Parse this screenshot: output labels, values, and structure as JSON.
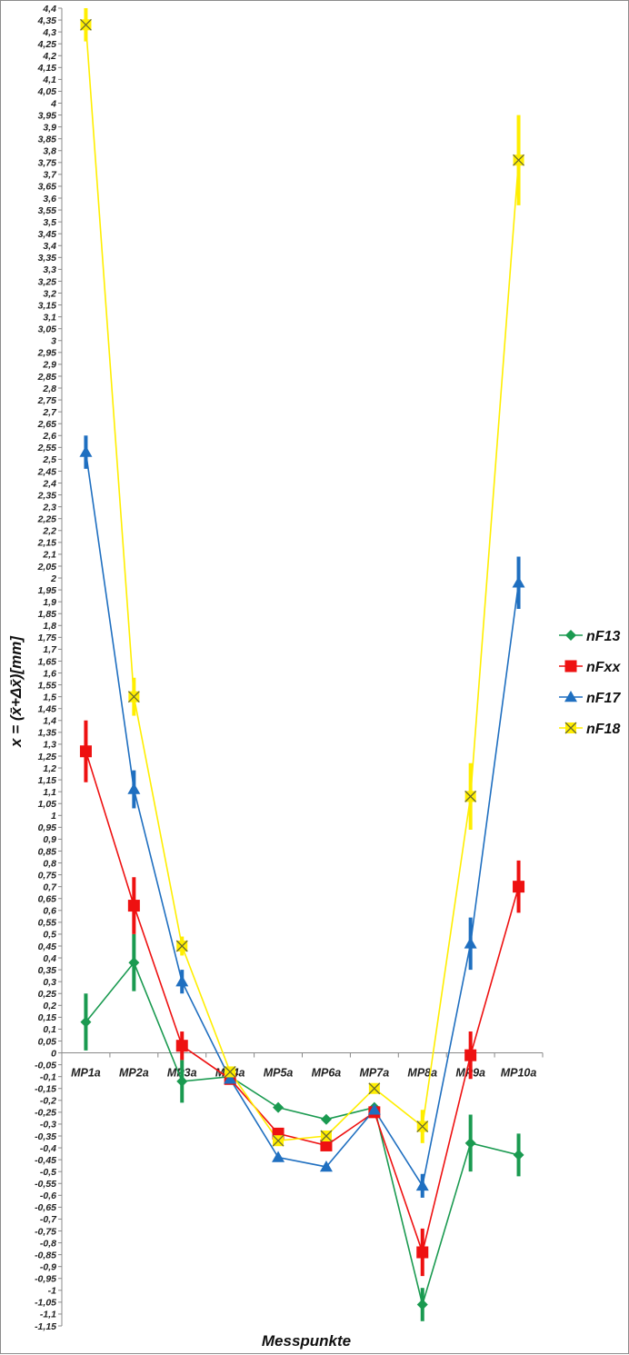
{
  "chart_data": {
    "type": "line",
    "xlabel": "Messpunkte",
    "ylabel": "x = (x̄+Δx̄)[mm]",
    "ylim": [
      -1.15,
      4.4
    ],
    "ytick_step": 0.05,
    "grid": false,
    "legend_position": "right",
    "categories": [
      "MP1a",
      "MP2a",
      "MP3a",
      "MP4a",
      "MP5a",
      "MP6a",
      "MP7a",
      "MP8a",
      "MP9a",
      "MP10a"
    ],
    "series": [
      {
        "name": "nF13",
        "color": "#1a9a50",
        "marker": "diamond",
        "values": [
          0.13,
          0.38,
          -0.12,
          -0.1,
          -0.23,
          -0.28,
          -0.23,
          -1.06,
          -0.38,
          -0.43
        ],
        "errors": [
          0.12,
          0.12,
          0.09,
          0.0,
          0.0,
          0.0,
          0.0,
          0.07,
          0.12,
          0.09
        ]
      },
      {
        "name": "nFxx",
        "color": "#ee1111",
        "marker": "square",
        "values": [
          1.27,
          0.62,
          0.03,
          -0.11,
          -0.34,
          -0.39,
          -0.25,
          -0.84,
          -0.01,
          0.7
        ],
        "errors": [
          0.13,
          0.12,
          0.06,
          0.0,
          0.0,
          0.0,
          0.0,
          0.1,
          0.1,
          0.11
        ]
      },
      {
        "name": "nF17",
        "color": "#1f6fc0",
        "marker": "triangle",
        "values": [
          2.53,
          1.11,
          0.3,
          -0.11,
          -0.44,
          -0.48,
          -0.24,
          -0.56,
          0.46,
          1.98
        ],
        "errors": [
          0.07,
          0.08,
          0.05,
          0.0,
          0.0,
          0.0,
          0.0,
          0.05,
          0.11,
          0.11
        ]
      },
      {
        "name": "nF18",
        "color": "#ffee00",
        "marker": "x",
        "values": [
          4.33,
          1.5,
          0.45,
          -0.08,
          -0.37,
          -0.35,
          -0.15,
          -0.31,
          1.08,
          3.76
        ],
        "errors": [
          0.07,
          0.08,
          0.04,
          0.0,
          0.0,
          0.0,
          0.0,
          0.07,
          0.14,
          0.19
        ]
      }
    ]
  }
}
